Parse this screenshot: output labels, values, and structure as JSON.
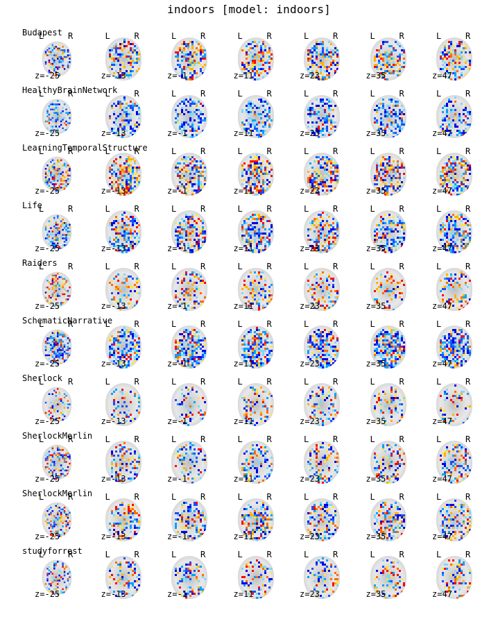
{
  "figure": {
    "title": "indoors [model: indoors]"
  },
  "orientation": {
    "left": "L",
    "right": "R"
  },
  "slices": [
    "z=-25",
    "z=-13",
    "z=-1",
    "z=11",
    "z=23",
    "z=35",
    "z=47"
  ],
  "rows": [
    {
      "label": "Budapest",
      "activation": {
        "hot": 0.35,
        "cold": 0.45
      }
    },
    {
      "label": "HealthyBrainNetwork",
      "activation": {
        "hot": 0.08,
        "cold": 0.55
      }
    },
    {
      "label": "LearningTemporalStructure",
      "activation": {
        "hot": 0.45,
        "cold": 0.45
      }
    },
    {
      "label": "Life",
      "activation": {
        "hot": 0.3,
        "cold": 0.55
      }
    },
    {
      "label": "Raiders",
      "activation": {
        "hot": 0.3,
        "cold": 0.2
      }
    },
    {
      "label": "SchematicNarrative",
      "activation": {
        "hot": 0.25,
        "cold": 0.75
      }
    },
    {
      "label": "Sherlock",
      "activation": {
        "hot": 0.2,
        "cold": 0.2
      }
    },
    {
      "label": "SherlockMerlin",
      "activation": {
        "hot": 0.25,
        "cold": 0.35
      }
    },
    {
      "label": "SherlockMerlin",
      "activation": {
        "hot": 0.3,
        "cold": 0.4
      }
    },
    {
      "label": "studyforrest",
      "activation": {
        "hot": 0.2,
        "cold": 0.3
      }
    }
  ],
  "colors": {
    "hot": [
      "#ff0000",
      "#ff6a00",
      "#ffb000",
      "#ffe14d"
    ],
    "cold": [
      "#0000e6",
      "#1a4dff",
      "#00a0ff",
      "#7fd6ff"
    ],
    "background": "#ffffff"
  }
}
